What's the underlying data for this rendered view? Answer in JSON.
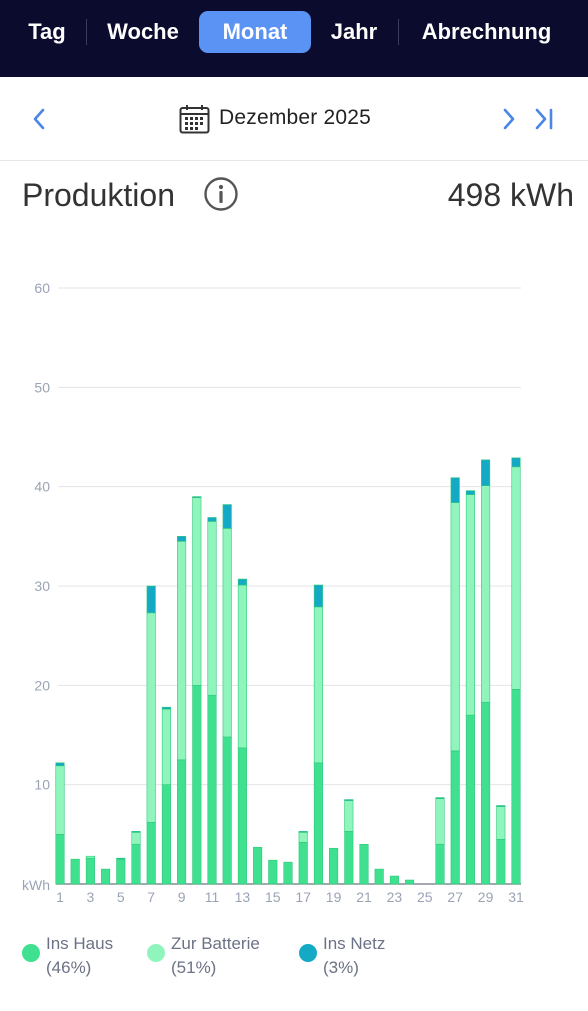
{
  "tabs": [
    {
      "label": "Tag",
      "active": false
    },
    {
      "label": "Woche",
      "active": false
    },
    {
      "label": "Monat",
      "active": true
    },
    {
      "label": "Jahr",
      "active": false
    },
    {
      "label": "Abrechnung",
      "active": false
    }
  ],
  "date_nav": {
    "prev_icon": "chevron-left-icon",
    "calendar_icon": "calendar-icon",
    "label": "Dezember 2025",
    "next_icon": "chevron-right-icon",
    "last_icon": "skip-to-end-icon"
  },
  "production": {
    "title": "Produktion",
    "info_icon": "info-icon",
    "total": "498 kWh"
  },
  "colors": {
    "ins_haus": "#3fe08f",
    "zur_batterie": "#8ff5bd",
    "ins_netz": "#14a9c5",
    "accent": "#5b93f5",
    "topbar": "#0b0b2e"
  },
  "legend": [
    {
      "name": "Ins Haus",
      "pct": "(46%)",
      "color": "#3fe08f"
    },
    {
      "name": "Zur Batterie",
      "pct": "(51%)",
      "color": "#8ff5bd"
    },
    {
      "name": "Ins Netz",
      "pct": "(3%)",
      "color": "#14a9c5"
    }
  ],
  "chart_data": {
    "type": "bar",
    "stacked": true,
    "ylabel": "kWh",
    "ylim": [
      0,
      60
    ],
    "yticks": [
      10,
      20,
      30,
      40,
      50,
      60
    ],
    "grid": true,
    "x": [
      1,
      2,
      3,
      4,
      5,
      6,
      7,
      8,
      9,
      10,
      11,
      12,
      13,
      14,
      15,
      16,
      17,
      18,
      19,
      20,
      21,
      22,
      23,
      24,
      25,
      26,
      27,
      28,
      29,
      30,
      31
    ],
    "x_tick_labels": [
      "1",
      "3",
      "5",
      "7",
      "9",
      "11",
      "13",
      "15",
      "17",
      "19",
      "21",
      "23",
      "25",
      "27",
      "29",
      "31"
    ],
    "series": [
      {
        "name": "Ins Haus",
        "values": [
          5.0,
          2.5,
          2.6,
          1.5,
          2.5,
          4.0,
          6.2,
          10.0,
          12.5,
          20.0,
          19.0,
          14.8,
          13.7,
          3.7,
          2.4,
          2.2,
          4.2,
          12.2,
          3.6,
          5.3,
          4.0,
          1.5,
          0.8,
          0.4,
          0,
          4.0,
          13.4,
          17.0,
          18.3,
          4.5,
          19.6
        ]
      },
      {
        "name": "Zur Batterie",
        "values": [
          6.9,
          0,
          0.2,
          0,
          0,
          1.2,
          21.1,
          7.6,
          22.0,
          18.9,
          17.5,
          21.0,
          16.4,
          0,
          0,
          0,
          1.0,
          15.7,
          0,
          3.1,
          0,
          0,
          0,
          0,
          0,
          4.6,
          25.0,
          22.2,
          21.8,
          3.3,
          22.4
        ]
      },
      {
        "name": "Ins Netz",
        "values": [
          0.3,
          0,
          0,
          0,
          0.1,
          0.1,
          2.7,
          0.2,
          0.5,
          0.1,
          0.4,
          2.4,
          0.6,
          0,
          0,
          0,
          0.1,
          2.2,
          0,
          0.1,
          0,
          0,
          0,
          0,
          0,
          0.1,
          2.5,
          0.4,
          2.6,
          0.1,
          0.9
        ]
      }
    ]
  }
}
